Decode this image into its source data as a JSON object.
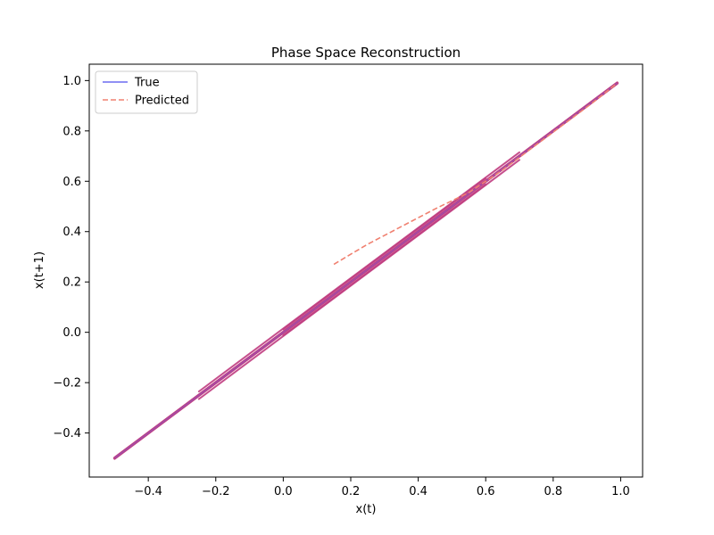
{
  "chart_data": {
    "type": "line",
    "title": "Phase Space Reconstruction",
    "xlabel": "x(t)",
    "ylabel": "x(t+1)",
    "xlim": [
      -0.575,
      1.065
    ],
    "ylim": [
      -0.575,
      1.065
    ],
    "xticks": [
      -0.4,
      -0.2,
      0.0,
      0.2,
      0.4,
      0.6,
      0.8,
      1.0
    ],
    "yticks": [
      -0.4,
      -0.2,
      0.0,
      0.2,
      0.4,
      0.6,
      0.8,
      1.0
    ],
    "xtick_labels": [
      "−0.4",
      "−0.2",
      "0.0",
      "0.2",
      "0.4",
      "0.6",
      "0.8",
      "1.0"
    ],
    "ytick_labels": [
      "−0.4",
      "−0.2",
      "0.0",
      "0.2",
      "0.4",
      "0.6",
      "0.8",
      "1.0"
    ],
    "grid": false,
    "legend_position": "top-left",
    "series": [
      {
        "name": "True",
        "color": "#6b6bf0",
        "style": "solid",
        "x": [
          -0.5,
          0.99
        ],
        "y": [
          -0.5,
          0.99
        ]
      },
      {
        "name": "Predicted",
        "color": "#f08070",
        "style": "dashed",
        "x": [
          0.15,
          0.25,
          0.35,
          0.45,
          0.55,
          0.65,
          0.75,
          0.85,
          0.92,
          0.99
        ],
        "y": [
          0.27,
          0.35,
          0.42,
          0.49,
          0.555,
          0.645,
          0.745,
          0.845,
          0.915,
          0.99
        ]
      }
    ],
    "overlap_color": "#c03c80",
    "true_band": [
      {
        "x": [
          -0.5,
          0.99
        ],
        "y": [
          -0.5,
          0.99
        ]
      },
      {
        "x": [
          -0.5,
          0.99
        ],
        "y": [
          -0.497,
          0.993
        ]
      },
      {
        "x": [
          -0.5,
          0.99
        ],
        "y": [
          -0.503,
          0.987
        ]
      },
      {
        "x": [
          -0.25,
          0.7
        ],
        "y": [
          -0.235,
          0.715
        ]
      },
      {
        "x": [
          -0.25,
          0.7
        ],
        "y": [
          -0.265,
          0.685
        ]
      },
      {
        "x": [
          0.0,
          0.6
        ],
        "y": [
          0.012,
          0.612
        ]
      },
      {
        "x": [
          0.0,
          0.6
        ],
        "y": [
          -0.012,
          0.588
        ]
      }
    ]
  }
}
